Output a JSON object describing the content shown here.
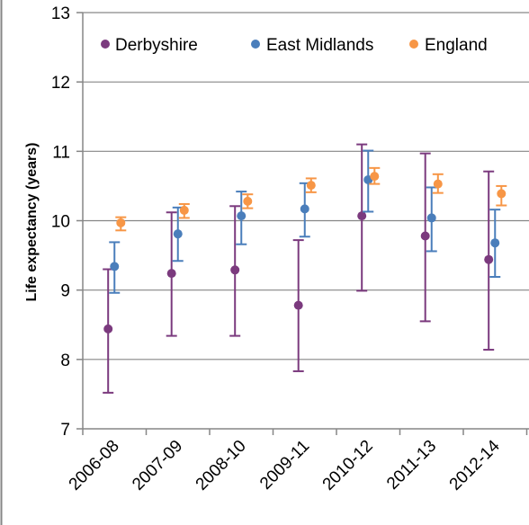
{
  "chart_data": {
    "type": "scatter",
    "title": "",
    "xlabel": "",
    "ylabel": "Life expectancy  (years)",
    "categories": [
      "2006-08",
      "2007-09",
      "2008-10",
      "2009-11",
      "2010-12",
      "2011-13",
      "2012-14"
    ],
    "ylim": [
      7,
      13
    ],
    "yticks": [
      "7",
      "8",
      "9",
      "10",
      "11",
      "12",
      "13"
    ],
    "grid": true,
    "legend_position": "top",
    "series": [
      {
        "name": "Derbyshire",
        "color": "#7b3a7e",
        "values": [
          8.44,
          9.24,
          9.29,
          8.78,
          10.07,
          9.78,
          9.44
        ],
        "lower": [
          7.52,
          8.34,
          8.34,
          7.83,
          8.99,
          8.55,
          8.14
        ],
        "upper": [
          9.3,
          10.12,
          10.21,
          9.72,
          11.1,
          10.97,
          10.71
        ]
      },
      {
        "name": "East Midlands",
        "color": "#4a7ebb",
        "values": [
          9.34,
          9.81,
          10.07,
          10.17,
          10.59,
          10.04,
          9.68
        ],
        "lower": [
          8.96,
          9.42,
          9.66,
          9.77,
          10.13,
          9.56,
          9.19
        ],
        "upper": [
          9.69,
          10.19,
          10.42,
          10.54,
          11.01,
          10.48,
          10.16
        ]
      },
      {
        "name": "England",
        "color": "#f79646",
        "values": [
          9.97,
          10.15,
          10.28,
          10.51,
          10.64,
          10.53,
          10.39
        ],
        "lower": [
          9.86,
          10.04,
          10.18,
          10.41,
          10.53,
          10.4,
          10.22
        ],
        "upper": [
          10.05,
          10.24,
          10.38,
          10.61,
          10.76,
          10.67,
          10.5
        ]
      }
    ]
  }
}
